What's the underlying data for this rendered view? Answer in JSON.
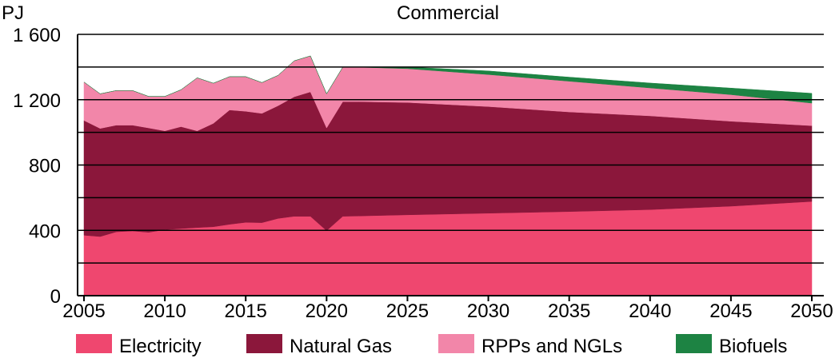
{
  "chart_data": {
    "type": "area",
    "stacked": true,
    "title": "Commercial",
    "ylabel": "PJ",
    "xlabel": "",
    "ylim": [
      0,
      1600
    ],
    "xlim": [
      2005,
      2050
    ],
    "y_ticks": [
      0,
      400,
      800,
      1200,
      1600
    ],
    "y_tick_labels": [
      "0",
      "400",
      "800",
      "1 200",
      "1 600"
    ],
    "x_ticks": [
      2005,
      2010,
      2015,
      2020,
      2025,
      2030,
      2035,
      2040,
      2045,
      2050
    ],
    "x_tick_labels": [
      "2005",
      "2010",
      "2015",
      "2020",
      "2025",
      "2030",
      "2035",
      "2040",
      "2045",
      "2050"
    ],
    "grid": true,
    "legend_position": "bottom",
    "x": [
      2005,
      2006,
      2007,
      2008,
      2009,
      2010,
      2011,
      2012,
      2013,
      2014,
      2015,
      2016,
      2017,
      2018,
      2019,
      2020,
      2021,
      2022,
      2025,
      2030,
      2035,
      2040,
      2045,
      2050
    ],
    "series": [
      {
        "name": "Electricity",
        "color": "#EF476F",
        "values": [
          370,
          362,
          391,
          396,
          388,
          404,
          411,
          417,
          422,
          437,
          449,
          447,
          473,
          486,
          486,
          398,
          486,
          488,
          495,
          505,
          515,
          527,
          548,
          577
        ]
      },
      {
        "name": "Natural Gas",
        "color": "#8B173B",
        "values": [
          703,
          662,
          653,
          648,
          639,
          605,
          624,
          592,
          633,
          700,
          680,
          669,
          690,
          732,
          762,
          629,
          702,
          700,
          688,
          653,
          610,
          574,
          520,
          464
        ]
      },
      {
        "name": "RPPs and NGLs",
        "color": "#F286A9",
        "values": [
          235,
          212,
          212,
          212,
          193,
          211,
          226,
          325,
          246,
          204,
          212,
          189,
          186,
          220,
          220,
          209,
          211,
          211,
          207,
          196,
          188,
          171,
          163,
          138
        ]
      },
      {
        "name": "Biofuels",
        "color": "#1D8343",
        "values": [
          0,
          0,
          0,
          0,
          0,
          0,
          0,
          0,
          0,
          0,
          0,
          0,
          0,
          0,
          0,
          0,
          0,
          0,
          10,
          22,
          25,
          30,
          40,
          60
        ]
      }
    ]
  }
}
